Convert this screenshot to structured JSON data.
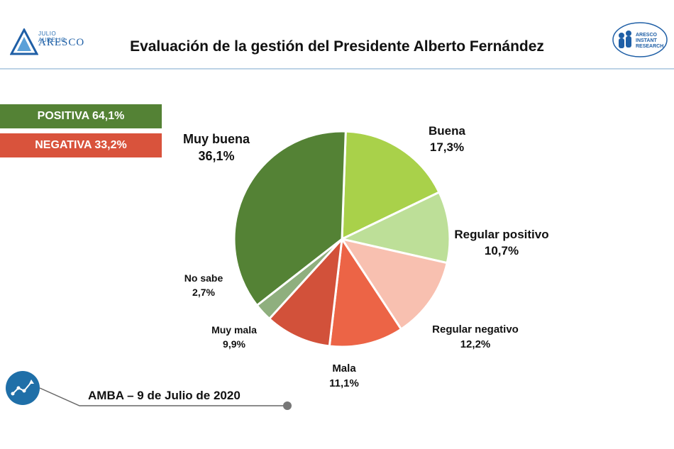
{
  "header": {
    "title": "Evaluación de la gestión del Presidente Alberto Fernández",
    "logo_left_top": "JULIO AURELIO",
    "logo_left_main": "ARESCO",
    "logo_right_line1": "ARESCO",
    "logo_right_line2": "INSTANT",
    "logo_right_line3": "RESEARCH"
  },
  "summary": {
    "positive": "POSITIVA 64,1%",
    "negative": "NEGATIVA 33,2%",
    "positive_color": "#548235",
    "negative_color": "#d9533c"
  },
  "chart_data": {
    "type": "pie",
    "title": "Evaluación de la gestión del Presidente Alberto Fernández",
    "slices": [
      {
        "label": "Buena",
        "value": 17.3,
        "value_text": "17,3%",
        "color": "#a9d14a"
      },
      {
        "label": "Regular positivo",
        "value": 10.7,
        "value_text": "10,7%",
        "color": "#bddf98"
      },
      {
        "label": "Regular negativo",
        "value": 12.2,
        "value_text": "12,2%",
        "color": "#f8c0b0"
      },
      {
        "label": "Mala",
        "value": 11.1,
        "value_text": "11,1%",
        "color": "#ec6446"
      },
      {
        "label": "Muy mala",
        "value": 9.9,
        "value_text": "9,9%",
        "color": "#d2513a"
      },
      {
        "label": "No sabe",
        "value": 2.7,
        "value_text": "2,7%",
        "color": "#8faf7e"
      },
      {
        "label": "Muy buena",
        "value": 36.1,
        "value_text": "36,1%",
        "color": "#548235"
      }
    ]
  },
  "footer": {
    "text": "AMBA – 9 de Julio de 2020",
    "icon": "trend-line-icon",
    "accent_color": "#1f6fa8"
  }
}
